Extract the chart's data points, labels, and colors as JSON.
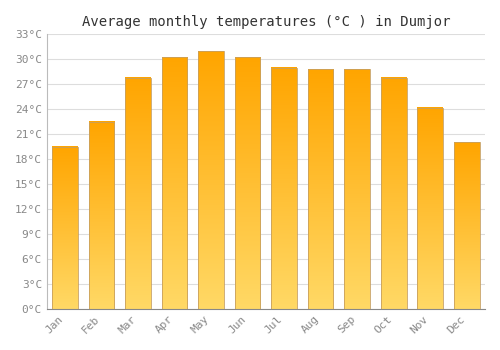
{
  "title": "Average monthly temperatures (°C ) in Dumjor",
  "months": [
    "Jan",
    "Feb",
    "Mar",
    "Apr",
    "May",
    "Jun",
    "Jul",
    "Aug",
    "Sep",
    "Oct",
    "Nov",
    "Dec"
  ],
  "values": [
    19.5,
    22.5,
    27.8,
    30.3,
    31.0,
    30.3,
    29.0,
    28.8,
    28.8,
    27.8,
    24.2,
    20.0
  ],
  "bar_color_top": "#FFA500",
  "bar_color_bottom": "#FFD966",
  "bar_border_color": "#C8A060",
  "background_color": "#FFFFFF",
  "grid_color": "#DDDDDD",
  "tick_label_color": "#888888",
  "title_color": "#333333",
  "ylim": [
    0,
    33
  ],
  "yticks": [
    0,
    3,
    6,
    9,
    12,
    15,
    18,
    21,
    24,
    27,
    30,
    33
  ],
  "ytick_labels": [
    "0°C",
    "3°C",
    "6°C",
    "9°C",
    "12°C",
    "15°C",
    "18°C",
    "21°C",
    "24°C",
    "27°C",
    "30°C",
    "33°C"
  ],
  "title_fontsize": 10,
  "tick_fontsize": 8,
  "font_family": "monospace",
  "bar_width": 0.7
}
